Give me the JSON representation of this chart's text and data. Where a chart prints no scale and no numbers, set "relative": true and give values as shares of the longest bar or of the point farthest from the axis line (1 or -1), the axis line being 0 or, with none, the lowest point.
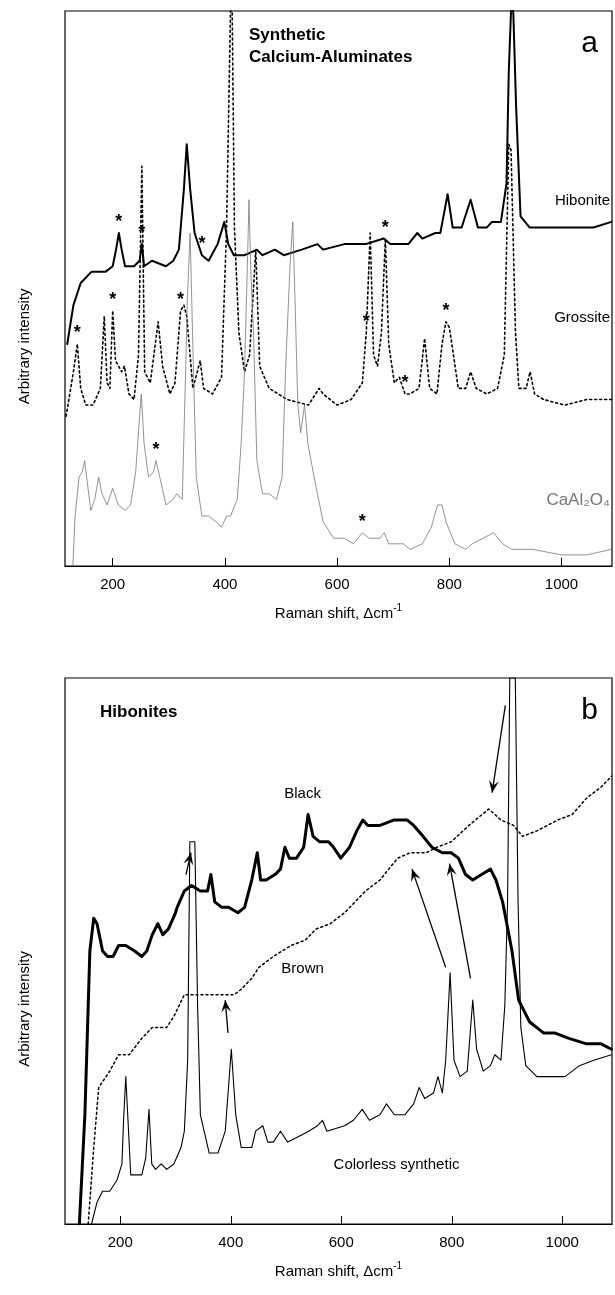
{
  "chart_data": [
    {
      "type": "line",
      "title": "Synthetic Calcium-Aluminates",
      "xlabel": "Raman shift, Δcm$^{-1}$",
      "ylabel": "Arbitrary intensity",
      "relative": true,
      "legend": false,
      "grid": false,
      "marker": "none",
      "xlim": [
        115,
        1090
      ],
      "xticks": [
        200,
        400,
        600,
        800,
        1000
      ],
      "annotations": [
        "a",
        {
          "text": "*",
          "x": 211,
          "y": 0.6
        },
        {
          "text": "*",
          "x": 252,
          "y": 0.58
        },
        {
          "text": "*",
          "x": 359,
          "y": 0.56
        },
        {
          "text": "*",
          "x": 137,
          "y": 0.4
        },
        {
          "text": "*",
          "x": 200,
          "y": 0.46
        },
        {
          "text": "*",
          "x": 321,
          "y": 0.46
        },
        {
          "text": "*",
          "x": 652,
          "y": 0.42
        },
        {
          "text": "*",
          "x": 686,
          "y": 0.59
        },
        {
          "text": "*",
          "x": 721,
          "y": 0.31
        },
        {
          "text": "*",
          "x": 794,
          "y": 0.44
        },
        {
          "text": "*",
          "x": 277,
          "y": 0.19
        },
        {
          "text": "*",
          "x": 645,
          "y": 0.06
        }
      ],
      "series": [
        {
          "name": "Hibonite",
          "color": "#000000",
          "line_style": "solid",
          "x": [
            119,
            130,
            143,
            162,
            187,
            200,
            206,
            211,
            216,
            222,
            238,
            248,
            252,
            256,
            270,
            295,
            308,
            318,
            327,
            332,
            338,
            346,
            359,
            371,
            387,
            399,
            406,
            416,
            435,
            457,
            467,
            489,
            505,
            537,
            565,
            575,
            613,
            638,
            651,
            683,
            695,
            727,
            743,
            752,
            775,
            784,
            797,
            806,
            822,
            838,
            851,
            867,
            876,
            892,
            902,
            906,
            910,
            914,
            919,
            927,
            943,
            968,
            1006,
            1057,
            1089
          ],
          "values": [
            0.4,
            0.47,
            0.51,
            0.53,
            0.53,
            0.54,
            0.57,
            0.6,
            0.57,
            0.54,
            0.54,
            0.55,
            0.58,
            0.54,
            0.55,
            0.54,
            0.55,
            0.57,
            0.68,
            0.76,
            0.68,
            0.6,
            0.56,
            0.55,
            0.58,
            0.62,
            0.58,
            0.56,
            0.56,
            0.57,
            0.56,
            0.57,
            0.56,
            0.57,
            0.58,
            0.57,
            0.58,
            0.58,
            0.58,
            0.59,
            0.58,
            0.58,
            0.6,
            0.59,
            0.6,
            0.6,
            0.67,
            0.61,
            0.61,
            0.66,
            0.61,
            0.61,
            0.62,
            0.62,
            0.69,
            0.89,
            1,
            1,
            0.83,
            0.63,
            0.61,
            0.61,
            0.61,
            0.61,
            0.62
          ]
        },
        {
          "name": "Grossite",
          "color": "#000000",
          "line_style": "dotted",
          "x": [
            117,
            130,
            137,
            143,
            152,
            165,
            178,
            185,
            190,
            195,
            200,
            205,
            216,
            221,
            229,
            238,
            246,
            252,
            257,
            267,
            281,
            289,
            302,
            311,
            321,
            327,
            332,
            343,
            356,
            362,
            378,
            394,
            403,
            410,
            413,
            417,
            425,
            435,
            444,
            455,
            462,
            479,
            511,
            549,
            568,
            575,
            600,
            625,
            645,
            652,
            659,
            665,
            672,
            679,
            686,
            692,
            702,
            711,
            721,
            730,
            746,
            756,
            765,
            778,
            787,
            794,
            800,
            806,
            816,
            829,
            838,
            848,
            867,
            886,
            898,
            906,
            910,
            918,
            924,
            937,
            944,
            952,
            968,
            1006,
            1045,
            1089
          ],
          "values": [
            0.27,
            0.35,
            0.4,
            0.32,
            0.29,
            0.29,
            0.32,
            0.45,
            0.33,
            0.32,
            0.46,
            0.37,
            0.35,
            0.36,
            0.31,
            0.3,
            0.38,
            0.72,
            0.35,
            0.33,
            0.44,
            0.36,
            0.31,
            0.33,
            0.46,
            0.47,
            0.45,
            0.32,
            0.37,
            0.32,
            0.31,
            0.34,
            0.61,
            1,
            1,
            0.61,
            0.42,
            0.35,
            0.38,
            0.57,
            0.36,
            0.32,
            0.3,
            0.29,
            0.32,
            0.31,
            0.29,
            0.3,
            0.33,
            0.42,
            0.6,
            0.38,
            0.36,
            0.42,
            0.59,
            0.4,
            0.33,
            0.34,
            0.31,
            0.31,
            0.32,
            0.41,
            0.32,
            0.31,
            0.4,
            0.44,
            0.43,
            0.39,
            0.32,
            0.32,
            0.35,
            0.32,
            0.31,
            0.32,
            0.38,
            0.76,
            0.75,
            0.42,
            0.32,
            0.32,
            0.35,
            0.31,
            0.3,
            0.29,
            0.3,
            0.3
          ]
        },
        {
          "name": "CaAl₂O₄",
          "color": "#777777",
          "line_style": "solid",
          "x": [
            129,
            133,
            140,
            146,
            150,
            156,
            161,
            168,
            175,
            181,
            190,
            200,
            210,
            222,
            232,
            241,
            248,
            251,
            256,
            264,
            273,
            277,
            284,
            295,
            308,
            314,
            324,
            330,
            333,
            338,
            344,
            349,
            359,
            371,
            384,
            394,
            403,
            410,
            422,
            429,
            435,
            440,
            443,
            446,
            451,
            457,
            467,
            479,
            492,
            502,
            508,
            516,
            521,
            525,
            530,
            535,
            542,
            548,
            559,
            575,
            594,
            613,
            629,
            645,
            657,
            676,
            684,
            692,
            705,
            718,
            730,
            752,
            768,
            779,
            787,
            794,
            810,
            829,
            841,
            860,
            879,
            895,
            911,
            949,
            1000,
            1045,
            1089
          ],
          "values": [
            0,
            0.09,
            0.16,
            0.17,
            0.19,
            0.14,
            0.1,
            0.12,
            0.16,
            0.13,
            0.11,
            0.14,
            0.11,
            0.1,
            0.11,
            0.17,
            0.27,
            0.31,
            0.22,
            0.16,
            0.17,
            0.19,
            0.16,
            0.11,
            0.12,
            0.13,
            0.12,
            0.35,
            0.48,
            0.6,
            0.35,
            0.16,
            0.09,
            0.09,
            0.08,
            0.07,
            0.09,
            0.09,
            0.12,
            0.22,
            0.35,
            0.54,
            0.66,
            0.54,
            0.42,
            0.19,
            0.13,
            0.13,
            0.12,
            0.16,
            0.35,
            0.54,
            0.62,
            0.48,
            0.29,
            0.24,
            0.29,
            0.22,
            0.16,
            0.08,
            0.05,
            0.05,
            0.04,
            0.06,
            0.05,
            0.05,
            0.06,
            0.04,
            0.04,
            0.04,
            0.03,
            0.04,
            0.07,
            0.11,
            0.11,
            0.08,
            0.04,
            0.03,
            0.04,
            0.05,
            0.06,
            0.04,
            0.03,
            0.03,
            0.02,
            0.02,
            0.03
          ]
        }
      ]
    },
    {
      "type": "line",
      "title": "Hibonites",
      "xlabel": "Raman shift, Δcm$^{-1}$",
      "ylabel": "Arbitrary intensity",
      "relative": true,
      "legend": false,
      "grid": false,
      "marker": "none",
      "xlim": [
        100,
        1090
      ],
      "xticks": [
        200,
        400,
        600,
        800,
        1000
      ],
      "annotations": [
        "b"
      ],
      "series": [
        {
          "name": "Black",
          "color": "#000000",
          "line_style": "solid",
          "x": [
            126,
            136,
            145,
            152,
            158,
            168,
            177,
            187,
            197,
            210,
            226,
            239,
            248,
            258,
            268,
            277,
            287,
            300,
            303,
            316,
            329,
            345,
            358,
            364,
            371,
            384,
            396,
            413,
            425,
            438,
            448,
            454,
            464,
            480,
            490,
            498,
            506,
            519,
            532,
            540,
            549,
            561,
            577,
            586,
            599,
            615,
            628,
            639,
            648,
            670,
            696,
            719,
            731,
            748,
            764,
            783,
            799,
            812,
            825,
            838,
            854,
            870,
            880,
            892,
            909,
            921,
            941,
            966,
            986,
            1012,
            1044,
            1070,
            1089
          ],
          "values": [
            0,
            0.2,
            0.5,
            0.56,
            0.55,
            0.5,
            0.49,
            0.49,
            0.51,
            0.51,
            0.5,
            0.49,
            0.5,
            0.53,
            0.55,
            0.53,
            0.54,
            0.57,
            0.58,
            0.61,
            0.62,
            0.61,
            0.61,
            0.64,
            0.59,
            0.58,
            0.58,
            0.57,
            0.58,
            0.63,
            0.68,
            0.63,
            0.63,
            0.64,
            0.65,
            0.69,
            0.67,
            0.67,
            0.69,
            0.75,
            0.71,
            0.7,
            0.7,
            0.69,
            0.67,
            0.69,
            0.72,
            0.74,
            0.73,
            0.73,
            0.74,
            0.74,
            0.73,
            0.71,
            0.69,
            0.68,
            0.68,
            0.67,
            0.64,
            0.63,
            0.64,
            0.65,
            0.63,
            0.59,
            0.5,
            0.41,
            0.37,
            0.35,
            0.35,
            0.34,
            0.33,
            0.33,
            0.32
          ]
        },
        {
          "name": "Brown",
          "color": "#000000",
          "line_style": "dotted",
          "x": [
            142,
            152,
            161,
            181,
            197,
            216,
            239,
            258,
            284,
            297,
            316,
            329,
            348,
            367,
            387,
            406,
            419,
            438,
            451,
            477,
            509,
            535,
            554,
            580,
            606,
            625,
            644,
            670,
            702,
            725,
            754,
            773,
            799,
            831,
            867,
            889,
            912,
            928,
            954,
            992,
            1018,
            1044,
            1070,
            1089
          ],
          "values": [
            0,
            0.14,
            0.25,
            0.28,
            0.31,
            0.31,
            0.34,
            0.36,
            0.36,
            0.38,
            0.42,
            0.42,
            0.42,
            0.42,
            0.42,
            0.42,
            0.43,
            0.45,
            0.47,
            0.49,
            0.51,
            0.52,
            0.54,
            0.55,
            0.57,
            0.59,
            0.61,
            0.63,
            0.67,
            0.68,
            0.68,
            0.69,
            0.7,
            0.73,
            0.76,
            0.74,
            0.73,
            0.71,
            0.72,
            0.74,
            0.75,
            0.78,
            0.8,
            0.82
          ]
        },
        {
          "name": "Colorless synthetic",
          "color": "#000000",
          "line_style": "solid",
          "x": [
            148,
            158,
            168,
            181,
            194,
            203,
            206,
            210,
            214,
            219,
            239,
            246,
            252,
            257,
            264,
            274,
            284,
            297,
            310,
            316,
            322,
            326,
            335,
            340,
            345,
            361,
            377,
            390,
            401,
            409,
            419,
            438,
            445,
            458,
            467,
            477,
            490,
            503,
            522,
            541,
            557,
            566,
            574,
            606,
            622,
            638,
            651,
            670,
            682,
            696,
            715,
            731,
            741,
            751,
            767,
            775,
            783,
            789,
            797,
            804,
            815,
            828,
            838,
            845,
            857,
            870,
            878,
            889,
            896,
            901,
            905,
            915,
            920,
            925,
            934,
            954,
            979,
            1005,
            1031,
            1057,
            1089
          ],
          "values": [
            0,
            0.04,
            0.06,
            0.06,
            0.08,
            0.11,
            0.19,
            0.27,
            0.19,
            0.09,
            0.09,
            0.12,
            0.21,
            0.11,
            0.1,
            0.11,
            0.1,
            0.11,
            0.14,
            0.17,
            0.3,
            0.7,
            0.7,
            0.4,
            0.2,
            0.13,
            0.13,
            0.17,
            0.32,
            0.2,
            0.14,
            0.14,
            0.17,
            0.18,
            0.15,
            0.15,
            0.17,
            0.15,
            0.16,
            0.17,
            0.18,
            0.19,
            0.17,
            0.18,
            0.19,
            0.21,
            0.19,
            0.2,
            0.22,
            0.2,
            0.2,
            0.22,
            0.25,
            0.23,
            0.24,
            0.27,
            0.24,
            0.3,
            0.46,
            0.3,
            0.27,
            0.28,
            0.41,
            0.32,
            0.28,
            0.29,
            0.31,
            0.3,
            0.4,
            0.59,
            1,
            1,
            0.59,
            0.36,
            0.29,
            0.27,
            0.27,
            0.27,
            0.29,
            0.3,
            0.31
          ]
        }
      ]
    }
  ]
}
